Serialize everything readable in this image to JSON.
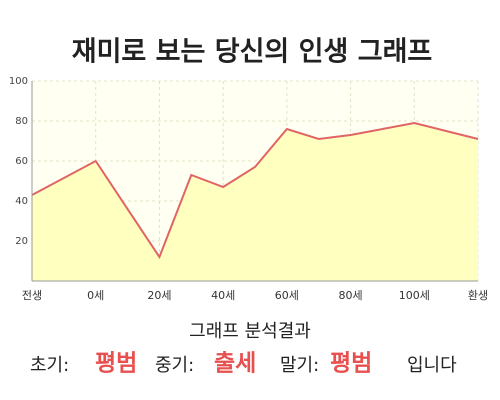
{
  "chart_data": {
    "type": "area",
    "title": "재미로 보는 당신의 인생 그래프",
    "x": [
      -20,
      0,
      20,
      30,
      40,
      50,
      60,
      70,
      80,
      100,
      120
    ],
    "series": [
      {
        "color": "#e06464",
        "fill": "#ffffc0",
        "values": [
          43,
          60,
          12,
          53,
          47,
          57,
          76,
          71,
          73,
          79,
          71
        ]
      }
    ],
    "xlim": [
      -20,
      120
    ],
    "xticks": [
      {
        "value": -20,
        "label": "전생"
      },
      {
        "value": 0,
        "label": "0세"
      },
      {
        "value": 20,
        "label": "20세"
      },
      {
        "value": 40,
        "label": "40세"
      },
      {
        "value": 60,
        "label": "60세"
      },
      {
        "value": 80,
        "label": "80세"
      },
      {
        "value": 100,
        "label": "100세"
      },
      {
        "value": 120,
        "label": "환생"
      }
    ],
    "ylim": [
      0,
      100
    ],
    "yticks": [
      20,
      40,
      60,
      80,
      100
    ],
    "grid": true
  },
  "result": {
    "heading": "그래프 분석결과",
    "items": [
      {
        "label": "초기:",
        "value": "평범"
      },
      {
        "label": "중기:",
        "value": "출세"
      },
      {
        "label": "말기:",
        "value": "평범"
      }
    ],
    "ending": "입니다"
  }
}
